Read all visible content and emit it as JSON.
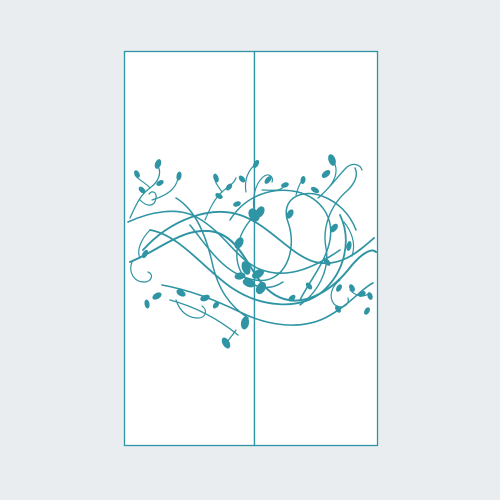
{
  "colors": {
    "background": "#e9edf0",
    "panel_fill": "#ffffff",
    "accent": "#2f94a3"
  },
  "panels": [
    {
      "name": "left-door-panel"
    },
    {
      "name": "right-door-panel"
    }
  ],
  "decoration": {
    "motif": "swirling-vines-with-leaves-icon"
  }
}
